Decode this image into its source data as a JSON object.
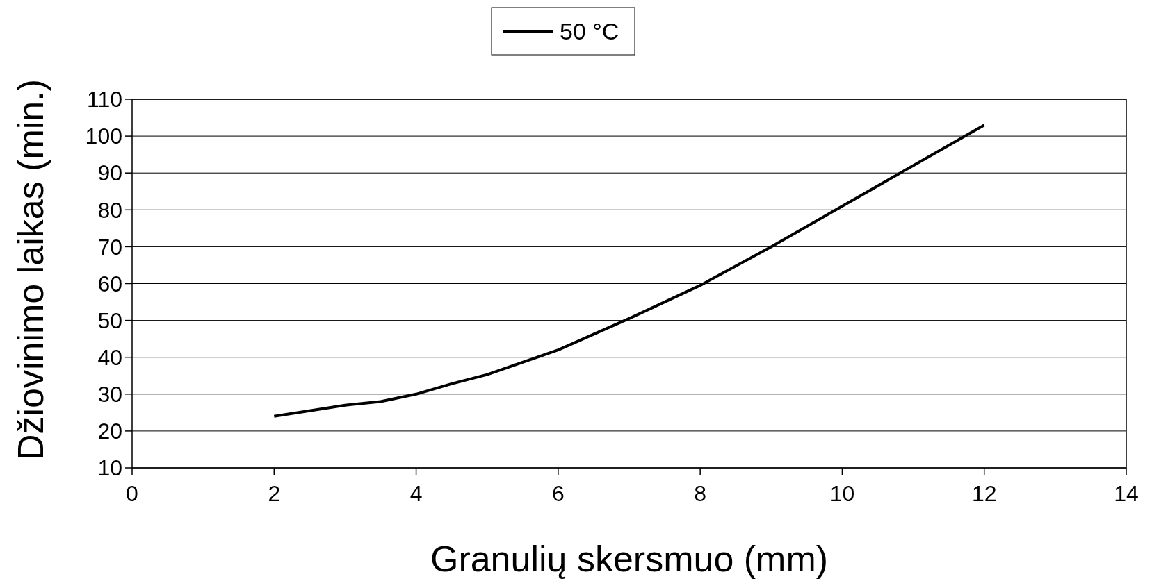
{
  "chart_data": {
    "type": "line",
    "xlabel": "Granulių skersmuo (mm)",
    "ylabel": "Džiovinimo laikas (min.)",
    "xlim": [
      0,
      14
    ],
    "xticks": [
      0,
      2,
      4,
      6,
      8,
      10,
      12,
      14
    ],
    "ylim": [
      10,
      110
    ],
    "yticks": [
      10,
      20,
      30,
      40,
      50,
      60,
      70,
      80,
      90,
      100,
      110
    ],
    "grid": "y",
    "legend": "top",
    "marker": "none",
    "line_style": "solid",
    "series": [
      {
        "name": "50 °C",
        "color": "#000000",
        "x": [
          2,
          3,
          3.5,
          4,
          4.5,
          5,
          6,
          7,
          8,
          9,
          10,
          11,
          12
        ],
        "values": [
          24,
          27,
          28,
          30,
          32.8,
          35.3,
          42,
          50.5,
          59.5,
          70,
          81,
          92,
          103
        ]
      }
    ]
  }
}
